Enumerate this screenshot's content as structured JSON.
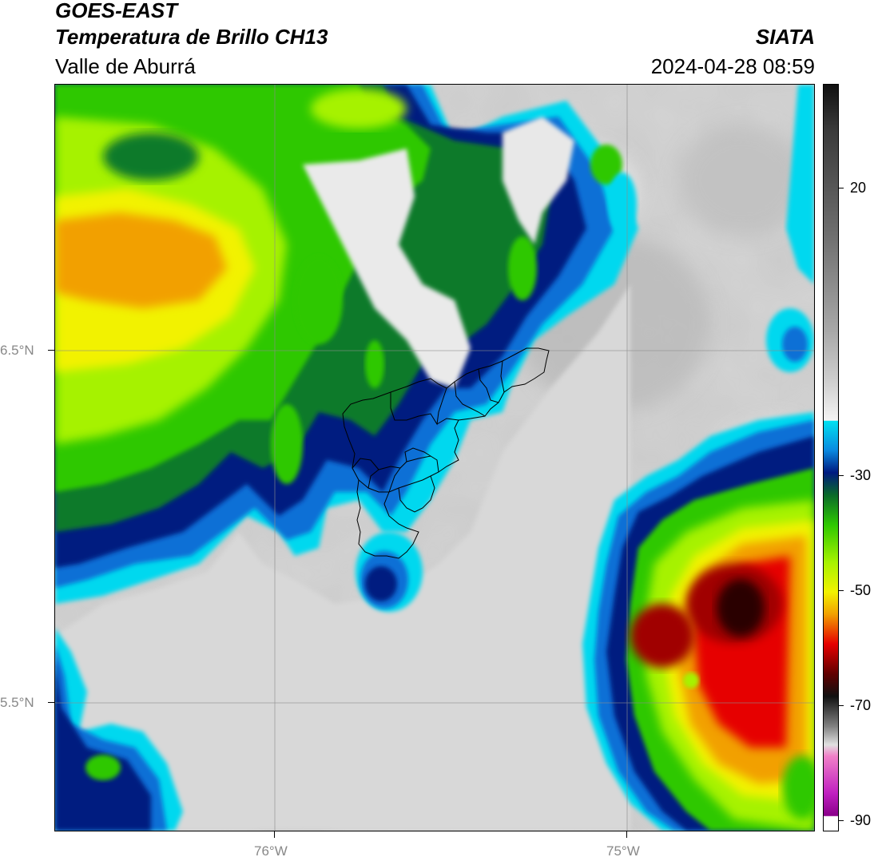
{
  "header": {
    "satellite": "GOES-EAST",
    "product": "Temperatura de Brillo CH13",
    "region": "Valle de Aburrá",
    "agency": "SIATA",
    "timestamp": "2024-04-28 08:59"
  },
  "map": {
    "lat_labels": [
      "6.5°N",
      "5.5°N"
    ],
    "lon_labels": [
      "76°W",
      "75°W"
    ],
    "gridlines": true,
    "overlay": "municipal-boundaries"
  },
  "colorbar": {
    "ticks": [
      "20",
      "-30",
      "-50",
      "-70",
      "-90"
    ],
    "tick_values": [
      20,
      -30,
      -50,
      -70,
      -90
    ],
    "range": [
      -92,
      38
    ],
    "colors": {
      "warm_gray_dark": "#2a2a2a",
      "gray_light": "#f2f2f2",
      "cyan": "#00d8ef",
      "navy": "#001a80",
      "green": "#2ec800",
      "lime": "#a6f200",
      "yellow": "#f2f200",
      "orange": "#f2a000",
      "red": "#e60000",
      "dark_red": "#600000",
      "magenta": "#c020c0",
      "purple": "#8a008a"
    }
  }
}
